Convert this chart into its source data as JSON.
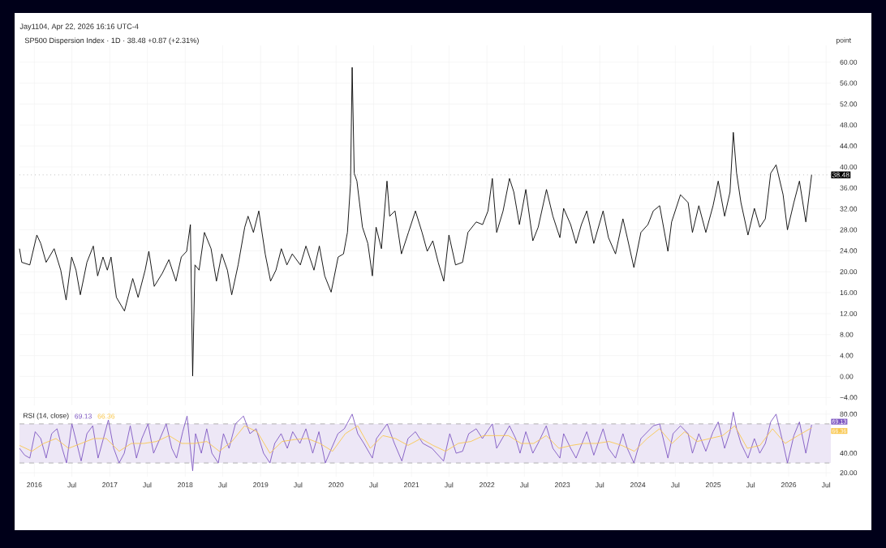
{
  "chart_data": [
    {
      "type": "line",
      "title": "Jay1104, Apr 22, 2026 16:16 UTC-4",
      "subtitle": "SP500 Dispersion Index · 1D · 38.48 +0.87 (+2.31%)",
      "ylabel": "point",
      "color": "#000000",
      "grid": true,
      "tick_labels": "y",
      "x": [
        "2015-10-21",
        "2015-11-01",
        "2015-12-10",
        "2016-01-13",
        "2016-02-01",
        "2016-02-27",
        "2016-04-06",
        "2016-05-08",
        "2016-06-03",
        "2016-06-30",
        "2016-07-21",
        "2016-08-11",
        "2016-09-12",
        "2016-10-13",
        "2016-11-03",
        "2016-11-29",
        "2016-12-20",
        "2017-01-07",
        "2017-02-02",
        "2017-03-13",
        "2017-04-22",
        "2017-05-18",
        "2017-06-21",
        "2017-07-09",
        "2017-08-04",
        "2017-09-12",
        "2017-10-14",
        "2017-11-17",
        "2017-12-13",
        "2018-01-08",
        "2018-01-26",
        "2018-02-06",
        "2018-02-17",
        "2018-03-09",
        "2018-04-04",
        "2018-05-06",
        "2018-06-01",
        "2018-06-27",
        "2018-07-24",
        "2018-08-14",
        "2018-09-14",
        "2018-10-16",
        "2018-11-01",
        "2018-11-27",
        "2018-12-23",
        "2019-01-23",
        "2019-02-18",
        "2019-03-16",
        "2019-04-11",
        "2019-05-08",
        "2019-06-03",
        "2019-07-12",
        "2019-08-08",
        "2019-09-16",
        "2019-10-12",
        "2019-11-07",
        "2019-12-08",
        "2020-01-11",
        "2020-02-06",
        "2020-02-25",
        "2020-03-11",
        "2020-03-19",
        "2020-03-29",
        "2020-04-11",
        "2020-05-08",
        "2020-06-03",
        "2020-06-25",
        "2020-07-13",
        "2020-08-08",
        "2020-09-04",
        "2020-09-17",
        "2020-10-13",
        "2020-11-13",
        "2020-12-17",
        "2021-01-20",
        "2021-02-21",
        "2021-03-18",
        "2021-04-14",
        "2021-05-10",
        "2021-06-06",
        "2021-07-01",
        "2021-08-02",
        "2021-09-05",
        "2021-10-01",
        "2021-11-10",
        "2021-12-11",
        "2022-01-06",
        "2022-01-27",
        "2022-02-17",
        "2022-03-20",
        "2022-04-20",
        "2022-05-11",
        "2022-06-07",
        "2022-07-08",
        "2022-08-11",
        "2022-09-06",
        "2022-10-16",
        "2022-11-16",
        "2022-12-20",
        "2023-01-07",
        "2023-02-10",
        "2023-03-08",
        "2023-04-03",
        "2023-04-29",
        "2023-06-02",
        "2023-07-17",
        "2023-08-12",
        "2023-09-15",
        "2023-10-21",
        "2023-11-11",
        "2023-12-13",
        "2024-01-16",
        "2024-02-19",
        "2024-03-16",
        "2024-04-16",
        "2024-05-26",
        "2024-06-13",
        "2024-07-26",
        "2024-09-01",
        "2024-09-22",
        "2024-10-23",
        "2024-11-26",
        "2024-12-31",
        "2025-01-25",
        "2025-02-25",
        "2025-03-23",
        "2025-04-08",
        "2025-04-24",
        "2025-05-15",
        "2025-06-18",
        "2025-07-19",
        "2025-08-14",
        "2025-09-10",
        "2025-10-06",
        "2025-11-01",
        "2025-12-05",
        "2025-12-26",
        "2026-01-26",
        "2026-02-22",
        "2026-03-25",
        "2026-04-22"
      ],
      "values": [
        24.4,
        21.8,
        21.3,
        27.0,
        25.4,
        21.8,
        24.4,
        20.3,
        14.6,
        22.8,
        20.3,
        15.6,
        21.8,
        24.9,
        19.2,
        22.8,
        20.3,
        22.8,
        15.1,
        12.5,
        18.7,
        15.1,
        20.3,
        23.9,
        17.2,
        19.7,
        22.3,
        18.2,
        22.8,
        23.9,
        29.0,
        0.1,
        21.3,
        20.3,
        27.5,
        24.4,
        18.2,
        23.4,
        20.3,
        15.6,
        21.3,
        28.5,
        30.6,
        27.5,
        31.6,
        23.4,
        18.2,
        20.3,
        24.4,
        21.3,
        23.4,
        21.3,
        24.9,
        20.3,
        24.9,
        19.2,
        16.1,
        22.8,
        23.4,
        27.5,
        36.8,
        59.0,
        38.8,
        37.3,
        28.5,
        25.4,
        19.2,
        28.5,
        24.4,
        37.3,
        30.6,
        31.6,
        23.4,
        27.5,
        31.6,
        27.5,
        23.9,
        25.9,
        21.8,
        18.2,
        27.0,
        21.3,
        21.8,
        27.5,
        29.5,
        29.0,
        31.6,
        37.8,
        27.5,
        31.6,
        37.8,
        35.2,
        29.0,
        35.7,
        25.9,
        28.5,
        35.7,
        30.6,
        26.5,
        32.1,
        29.0,
        25.4,
        29.0,
        31.6,
        25.4,
        31.6,
        26.5,
        23.4,
        30.1,
        26.5,
        20.8,
        27.5,
        29.0,
        31.6,
        32.6,
        23.9,
        29.5,
        34.7,
        33.2,
        27.5,
        32.6,
        27.5,
        32.6,
        37.3,
        30.6,
        35.2,
        46.6,
        38.8,
        33.2,
        27.0,
        32.1,
        28.5,
        30.1,
        38.8,
        40.4,
        34.7,
        28.0,
        33.2,
        37.3,
        29.5,
        38.5
      ],
      "xlim": [
        "2015-10-21",
        "2026-07-24"
      ],
      "xticks": [
        {
          "value": "2016-01-01",
          "label": null
        },
        {
          "value": "2016-07-01",
          "label": null
        },
        {
          "value": "2017-01-01",
          "label": null
        },
        {
          "value": "2017-07-01",
          "label": null
        },
        {
          "value": "2018-01-01",
          "label": null
        },
        {
          "value": "2018-07-01",
          "label": null
        },
        {
          "value": "2019-01-01",
          "label": null
        },
        {
          "value": "2019-07-01",
          "label": null
        },
        {
          "value": "2020-01-01",
          "label": null
        },
        {
          "value": "2020-07-01",
          "label": null
        },
        {
          "value": "2021-01-01",
          "label": null
        },
        {
          "value": "2021-07-01",
          "label": null
        },
        {
          "value": "2022-01-01",
          "label": null
        },
        {
          "value": "2022-07-01",
          "label": null
        },
        {
          "value": "2023-01-01",
          "label": null
        },
        {
          "value": "2023-07-01",
          "label": null
        },
        {
          "value": "2024-01-01",
          "label": null
        },
        {
          "value": "2024-07-01",
          "label": null
        },
        {
          "value": "2025-01-01",
          "label": null
        },
        {
          "value": "2025-07-01",
          "label": null
        },
        {
          "value": "2026-01-01",
          "label": null
        },
        {
          "value": "2026-07-01",
          "label": null
        }
      ],
      "ylim": [
        -5.5,
        63.2
      ],
      "yticks": [
        {
          "value": -4,
          "label": "−4.00"
        },
        {
          "value": 0,
          "label": "0.00"
        },
        {
          "value": 4,
          "label": "4.00"
        },
        {
          "value": 8,
          "label": "8.00"
        },
        {
          "value": 12,
          "label": "12.00"
        },
        {
          "value": 16,
          "label": "16.00"
        },
        {
          "value": 20,
          "label": "20.00"
        },
        {
          "value": 24,
          "label": "24.00"
        },
        {
          "value": 28,
          "label": "28.00"
        },
        {
          "value": 32,
          "label": "32.00"
        },
        {
          "value": 36,
          "label": "36.00"
        },
        {
          "value": 40,
          "label": "40.00"
        },
        {
          "value": 44,
          "label": "44.00"
        },
        {
          "value": 48,
          "label": "48.00"
        },
        {
          "value": 52,
          "label": "52.00"
        },
        {
          "value": 56,
          "label": "56.00"
        },
        {
          "value": 60,
          "label": "60.00"
        }
      ],
      "ref_lines": [
        {
          "axis": "y",
          "value": 38.48,
          "label": "38.48",
          "color": "#9e9e9e",
          "line_style": "dotted"
        }
      ]
    },
    {
      "type": "line",
      "title": "RSI (14, close)",
      "grid": true,
      "series": [
        {
          "color": "#7e57c2",
          "x": [
            "2015-10-21",
            "2015-11-15",
            "2015-12-10",
            "2016-01-05",
            "2016-02-01",
            "2016-02-27",
            "2016-03-25",
            "2016-04-20",
            "2016-05-15",
            "2016-06-05",
            "2016-07-01",
            "2016-07-25",
            "2016-08-15",
            "2016-09-12",
            "2016-10-10",
            "2016-11-05",
            "2016-12-01",
            "2016-12-25",
            "2017-01-20",
            "2017-02-15",
            "2017-03-12",
            "2017-04-10",
            "2017-05-10",
            "2017-06-05",
            "2017-07-05",
            "2017-08-01",
            "2017-09-01",
            "2017-10-01",
            "2017-10-28",
            "2017-11-20",
            "2017-12-20",
            "2018-01-10",
            "2018-02-06",
            "2018-02-20",
            "2018-03-20",
            "2018-04-15",
            "2018-05-10",
            "2018-06-10",
            "2018-07-05",
            "2018-08-01",
            "2018-09-01",
            "2018-10-10",
            "2018-11-10",
            "2018-12-10",
            "2019-01-15",
            "2019-02-15",
            "2019-03-10",
            "2019-04-10",
            "2019-05-10",
            "2019-06-05",
            "2019-07-10",
            "2019-08-08",
            "2019-09-10",
            "2019-10-10",
            "2019-11-10",
            "2019-12-10",
            "2020-01-10",
            "2020-02-10",
            "2020-03-19",
            "2020-04-15",
            "2020-05-15",
            "2020-06-25",
            "2020-07-15",
            "2020-09-05",
            "2020-10-10",
            "2020-11-15",
            "2020-12-15",
            "2021-01-20",
            "2021-02-25",
            "2021-04-10",
            "2021-06-05",
            "2021-07-05",
            "2021-08-05",
            "2021-09-05",
            "2021-10-05",
            "2021-11-10",
            "2021-12-10",
            "2022-01-27",
            "2022-02-17",
            "2022-04-20",
            "2022-05-20",
            "2022-06-10",
            "2022-07-08",
            "2022-08-11",
            "2022-09-05",
            "2022-10-15",
            "2022-11-16",
            "2022-12-20",
            "2023-01-07",
            "2023-02-10",
            "2023-03-08",
            "2023-04-29",
            "2023-06-02",
            "2023-07-17",
            "2023-08-12",
            "2023-09-15",
            "2023-10-21",
            "2023-11-11",
            "2023-12-13",
            "2024-01-16",
            "2024-03-16",
            "2024-04-16",
            "2024-05-26",
            "2024-06-20",
            "2024-07-26",
            "2024-09-01",
            "2024-09-22",
            "2024-10-23",
            "2024-11-26",
            "2024-12-31",
            "2025-01-25",
            "2025-02-25",
            "2025-03-23",
            "2025-04-08",
            "2025-04-24",
            "2025-05-15",
            "2025-06-18",
            "2025-07-19",
            "2025-08-14",
            "2025-09-10",
            "2025-10-06",
            "2025-11-01",
            "2025-12-05",
            "2025-12-26",
            "2026-01-26",
            "2026-02-22",
            "2026-03-25",
            "2026-04-22"
          ],
          "values": [
            45,
            38,
            35,
            62,
            55,
            35,
            60,
            65,
            45,
            30,
            70,
            50,
            32,
            60,
            68,
            35,
            55,
            74,
            45,
            30,
            40,
            68,
            35,
            55,
            70,
            40,
            55,
            70,
            45,
            35,
            62,
            78,
            22,
            60,
            40,
            65,
            40,
            30,
            60,
            45,
            70,
            78,
            60,
            65,
            40,
            30,
            50,
            60,
            45,
            62,
            50,
            65,
            40,
            62,
            30,
            45,
            60,
            65,
            80,
            60,
            50,
            35,
            55,
            70,
            50,
            32,
            55,
            62,
            50,
            45,
            32,
            60,
            40,
            42,
            60,
            65,
            55,
            70,
            45,
            68,
            55,
            40,
            62,
            40,
            50,
            68,
            45,
            35,
            60,
            45,
            35,
            62,
            38,
            65,
            45,
            35,
            60,
            45,
            30,
            55,
            68,
            70,
            35,
            60,
            68,
            60,
            40,
            60,
            42,
            62,
            72,
            45,
            62,
            82,
            65,
            50,
            35,
            55,
            40,
            50,
            72,
            80,
            50,
            30,
            58,
            72,
            40,
            69
          ]
        },
        {
          "color": "#f9c74f",
          "x": [
            "2015-10-21",
            "2015-12-20",
            "2016-02-15",
            "2016-04-15",
            "2016-06-15",
            "2016-08-15",
            "2016-10-15",
            "2016-12-15",
            "2017-02-15",
            "2017-04-15",
            "2017-06-15",
            "2017-08-15",
            "2017-10-15",
            "2017-12-15",
            "2018-02-15",
            "2018-04-15",
            "2018-06-15",
            "2018-08-15",
            "2018-10-15",
            "2018-12-15",
            "2019-02-15",
            "2019-04-15",
            "2019-06-15",
            "2019-08-15",
            "2019-10-15",
            "2019-12-15",
            "2020-02-15",
            "2020-04-15",
            "2020-06-15",
            "2020-08-15",
            "2020-10-15",
            "2020-12-15",
            "2021-02-15",
            "2021-04-15",
            "2021-06-15",
            "2021-08-15",
            "2021-10-15",
            "2021-12-15",
            "2022-02-15",
            "2022-04-15",
            "2022-06-15",
            "2022-08-15",
            "2022-10-15",
            "2022-12-15",
            "2023-02-15",
            "2023-04-15",
            "2023-06-15",
            "2023-08-15",
            "2023-10-15",
            "2023-12-15",
            "2024-02-15",
            "2024-04-15",
            "2024-06-15",
            "2024-08-15",
            "2024-10-15",
            "2024-12-15",
            "2025-02-15",
            "2025-04-15",
            "2025-06-15",
            "2025-08-15",
            "2025-10-15",
            "2025-12-15",
            "2026-02-15",
            "2026-04-22"
          ],
          "values": [
            48,
            42,
            50,
            55,
            45,
            50,
            55,
            55,
            42,
            50,
            50,
            52,
            58,
            50,
            50,
            52,
            42,
            52,
            68,
            62,
            40,
            52,
            54,
            55,
            50,
            42,
            60,
            68,
            45,
            58,
            55,
            48,
            55,
            48,
            42,
            50,
            52,
            58,
            58,
            58,
            50,
            50,
            58,
            45,
            48,
            50,
            50,
            52,
            48,
            42,
            55,
            65,
            50,
            62,
            52,
            55,
            58,
            68,
            45,
            48,
            65,
            50,
            58,
            66
          ]
        }
      ],
      "xlim": [
        "2015-10-21",
        "2026-07-24"
      ],
      "xticks": [
        {
          "value": "2016-01-01",
          "label": "2016"
        },
        {
          "value": "2016-07-01",
          "label": "Jul"
        },
        {
          "value": "2017-01-01",
          "label": "2017"
        },
        {
          "value": "2017-07-01",
          "label": "Jul"
        },
        {
          "value": "2018-01-01",
          "label": "2018"
        },
        {
          "value": "2018-07-01",
          "label": "Jul"
        },
        {
          "value": "2019-01-01",
          "label": "2019"
        },
        {
          "value": "2019-07-01",
          "label": "Jul"
        },
        {
          "value": "2020-01-01",
          "label": "2020"
        },
        {
          "value": "2020-07-01",
          "label": "Jul"
        },
        {
          "value": "2021-01-01",
          "label": "2021"
        },
        {
          "value": "2021-07-01",
          "label": "Jul"
        },
        {
          "value": "2022-01-01",
          "label": "2022"
        },
        {
          "value": "2022-07-01",
          "label": "Jul"
        },
        {
          "value": "2023-01-01",
          "label": "2023"
        },
        {
          "value": "2023-07-01",
          "label": "Jul"
        },
        {
          "value": "2024-01-01",
          "label": "2024"
        },
        {
          "value": "2024-07-01",
          "label": "Jul"
        },
        {
          "value": "2025-01-01",
          "label": "2025"
        },
        {
          "value": "2025-07-01",
          "label": "Jul"
        },
        {
          "value": "2026-01-01",
          "label": "2026"
        },
        {
          "value": "2026-07-01",
          "label": "Jul"
        }
      ],
      "ylim": [
        16,
        84
      ],
      "yticks": [
        {
          "value": 20,
          "label": "20.00"
        },
        {
          "value": 40,
          "label": "40.00"
        },
        {
          "value": 80,
          "label": "80.00"
        }
      ],
      "bands": [
        {
          "axis": "y",
          "from": 30,
          "to": 70,
          "color": "#ede7f6"
        }
      ],
      "ref_lines": [
        {
          "axis": "y",
          "value": 70,
          "color": "#9e9e9e",
          "line_style": "dashed"
        },
        {
          "axis": "y",
          "value": 30,
          "color": "#9e9e9e",
          "line_style": "dashed"
        }
      ],
      "annotations": [
        "69.13",
        "66.36",
        "69.13",
        "66.36"
      ]
    }
  ]
}
